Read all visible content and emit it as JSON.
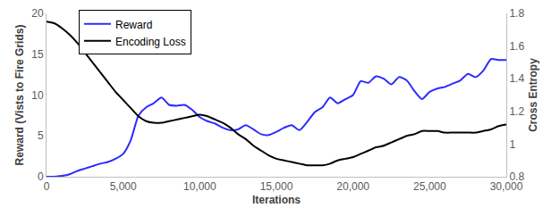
{
  "chart_data": {
    "type": "line",
    "x_label": "Iterations",
    "y_label": "Reward (Vists to Fire Grids)",
    "y2_label": "Cross Entropy",
    "x": [
      0,
      500,
      1000,
      1500,
      2000,
      2500,
      3000,
      3500,
      4000,
      4500,
      5000,
      5500,
      6000,
      6500,
      7000,
      7500,
      8000,
      8500,
      9000,
      9500,
      10000,
      10500,
      11000,
      11500,
      12000,
      12500,
      13000,
      13500,
      14000,
      14500,
      15000,
      15500,
      16000,
      16500,
      17000,
      17500,
      18000,
      18500,
      19000,
      19500,
      20000,
      20500,
      21000,
      21500,
      22000,
      22500,
      23000,
      23500,
      24000,
      24500,
      25000,
      25500,
      26000,
      26500,
      27000,
      27500,
      28000,
      28500,
      29000,
      29500,
      30000
    ],
    "series": [
      {
        "name": "Reward",
        "color": "#2b2bff",
        "values": [
          0,
          0,
          0.1,
          0.3,
          0.7,
          1,
          1.3,
          1.6,
          1.8,
          2.2,
          2.8,
          4.5,
          7.5,
          8.5,
          9,
          9.7,
          8.8,
          8.7,
          8.8,
          8.2,
          7.3,
          6.8,
          6.5,
          6,
          5.7,
          5.8,
          6.3,
          5.8,
          5.2,
          5.1,
          5.5,
          6,
          6.3,
          5.7,
          6.7,
          7.9,
          8.5,
          9.7,
          9,
          9.5,
          10,
          11.7,
          11.5,
          12.3,
          12,
          11.3,
          12.2,
          11.8,
          10.5,
          9.5,
          10.4,
          10.8,
          11,
          11.4,
          11.8,
          12.6,
          12.2,
          13,
          14.4,
          14.3,
          14.3
        ]
      },
      {
        "name": "Encoding Loss",
        "color": "#000000",
        "axis": "y2",
        "values": [
          1.75,
          1.74,
          1.71,
          1.67,
          1.62,
          1.56,
          1.5,
          1.44,
          1.38,
          1.32,
          1.27,
          1.22,
          1.17,
          1.14,
          1.13,
          1.13,
          1.14,
          1.15,
          1.16,
          1.17,
          1.18,
          1.17,
          1.15,
          1.13,
          1.1,
          1.06,
          1.03,
          0.99,
          0.96,
          0.93,
          0.91,
          0.9,
          0.89,
          0.88,
          0.87,
          0.87,
          0.87,
          0.88,
          0.9,
          0.91,
          0.92,
          0.94,
          0.96,
          0.98,
          0.99,
          1.01,
          1.03,
          1.05,
          1.06,
          1.08,
          1.08,
          1.08,
          1.07,
          1.07,
          1.07,
          1.07,
          1.07,
          1.08,
          1.09,
          1.11,
          1.12
        ]
      }
    ],
    "xlim": [
      0,
      30000
    ],
    "xticks": [
      0,
      {
        "value": 5000,
        "label": "5,000"
      },
      {
        "value": 10000,
        "label": "10,000"
      },
      {
        "value": 15000,
        "label": "15,000"
      },
      {
        "value": 20000,
        "label": "20,000"
      },
      {
        "value": 25000,
        "label": "25,000"
      },
      {
        "value": 30000,
        "label": "30,000"
      }
    ],
    "ylim": [
      0,
      20
    ],
    "yticks": [
      0,
      5,
      10,
      15,
      20
    ],
    "y2lim": [
      0.8,
      1.8
    ],
    "y2ticks": [
      0.8,
      1,
      1.2,
      1.4,
      1.6,
      1.8
    ],
    "grid": false,
    "legend": "upper left"
  }
}
